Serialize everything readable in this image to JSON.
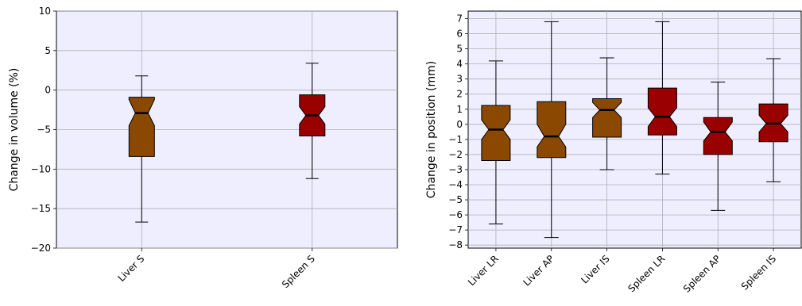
{
  "chart_data": [
    {
      "type": "box",
      "notched": true,
      "ylabel": "Change in volume (%)",
      "ylim": [
        -20,
        10
      ],
      "yticks": [
        {
          "v": 10,
          "label": "10"
        },
        {
          "v": 5,
          "label": "5"
        },
        {
          "v": 0,
          "label": "0"
        },
        {
          "v": -5,
          "label": "−5"
        },
        {
          "v": -10,
          "label": "−10"
        },
        {
          "v": -15,
          "label": "−15"
        },
        {
          "v": -20,
          "label": "−20"
        }
      ],
      "grid": true,
      "categories": [
        "Liver S",
        "Spleen S"
      ],
      "boxes": [
        {
          "category": "Liver S",
          "whisker_low": -16.7,
          "q1": -8.4,
          "notch_low": -4.5,
          "median": -2.9,
          "notch_high": -1.2,
          "q3": -0.9,
          "whisker_high": 1.8,
          "color": "#8b4800"
        },
        {
          "category": "Spleen S",
          "whisker_low": -11.2,
          "q1": -5.8,
          "notch_low": -4.3,
          "median": -3.2,
          "notch_high": -2.1,
          "q3": -0.6,
          "whisker_high": 3.4,
          "color": "#990000"
        }
      ]
    },
    {
      "type": "box",
      "notched": true,
      "ylabel": "Change in position (mm)",
      "ylim": [
        -8.2,
        7.5
      ],
      "yticks": [
        {
          "v": 7,
          "label": "7"
        },
        {
          "v": 6,
          "label": "6"
        },
        {
          "v": 5,
          "label": "5"
        },
        {
          "v": 4,
          "label": "4"
        },
        {
          "v": 3,
          "label": "3"
        },
        {
          "v": 2,
          "label": "2"
        },
        {
          "v": 1,
          "label": "1"
        },
        {
          "v": 0,
          "label": "0"
        },
        {
          "v": -1,
          "label": "−1"
        },
        {
          "v": -2,
          "label": "−2"
        },
        {
          "v": -3,
          "label": "−3"
        },
        {
          "v": -4,
          "label": "−4"
        },
        {
          "v": -5,
          "label": "−5"
        },
        {
          "v": -6,
          "label": "−6"
        },
        {
          "v": -7,
          "label": "−7"
        },
        {
          "v": -8,
          "label": "−8"
        }
      ],
      "grid": true,
      "categories": [
        "Liver LR",
        "Liver AP",
        "Liver IS",
        "Spleen LR",
        "Spleen AP",
        "Spleen IS"
      ],
      "boxes": [
        {
          "category": "Liver LR",
          "whisker_low": -6.6,
          "q1": -2.4,
          "notch_low": -1.0,
          "median": -0.35,
          "notch_high": 0.3,
          "q3": 1.25,
          "whisker_high": 4.2,
          "color": "#8b4800"
        },
        {
          "category": "Liver AP",
          "whisker_low": -7.5,
          "q1": -2.2,
          "notch_low": -1.5,
          "median": -0.8,
          "notch_high": 0.0,
          "q3": 1.5,
          "whisker_high": 6.8,
          "color": "#8b4800"
        },
        {
          "category": "Liver IS",
          "whisker_low": -3.0,
          "q1": -0.85,
          "notch_low": 0.45,
          "median": 0.95,
          "notch_high": 1.45,
          "q3": 1.7,
          "whisker_high": 4.4,
          "color": "#8b4800"
        },
        {
          "category": "Spleen LR",
          "whisker_low": -3.3,
          "q1": -0.7,
          "notch_low": -0.15,
          "median": 0.5,
          "notch_high": 1.1,
          "q3": 2.4,
          "whisker_high": 6.8,
          "color": "#990000"
        },
        {
          "category": "Spleen AP",
          "whisker_low": -5.7,
          "q1": -2.0,
          "notch_low": -1.1,
          "median": -0.5,
          "notch_high": 0.15,
          "q3": 0.45,
          "whisker_high": 2.8,
          "color": "#990000"
        },
        {
          "category": "Spleen IS",
          "whisker_low": -3.8,
          "q1": -1.15,
          "notch_low": -0.5,
          "median": 0.05,
          "notch_high": 0.6,
          "q3": 1.35,
          "whisker_high": 4.35,
          "color": "#990000"
        }
      ]
    }
  ]
}
